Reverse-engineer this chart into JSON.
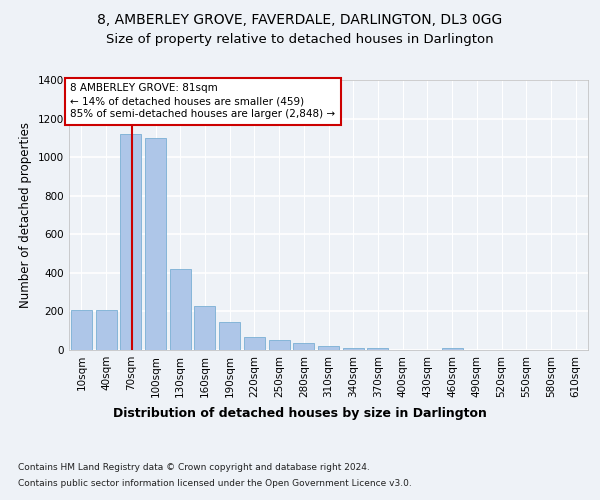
{
  "title1": "8, AMBERLEY GROVE, FAVERDALE, DARLINGTON, DL3 0GG",
  "title2": "Size of property relative to detached houses in Darlington",
  "xlabel": "Distribution of detached houses by size in Darlington",
  "ylabel": "Number of detached properties",
  "categories": [
    "10sqm",
    "40sqm",
    "70sqm",
    "100sqm",
    "130sqm",
    "160sqm",
    "190sqm",
    "220sqm",
    "250sqm",
    "280sqm",
    "310sqm",
    "340sqm",
    "370sqm",
    "400sqm",
    "430sqm",
    "460sqm",
    "490sqm",
    "520sqm",
    "550sqm",
    "580sqm",
    "610sqm"
  ],
  "values": [
    210,
    210,
    1120,
    1100,
    420,
    230,
    145,
    65,
    50,
    35,
    20,
    10,
    10,
    0,
    0,
    10,
    0,
    0,
    0,
    0,
    0
  ],
  "bar_color": "#aec6e8",
  "bar_edge_color": "#7aafd4",
  "vline_color": "#cc0000",
  "annotation_text": "8 AMBERLEY GROVE: 81sqm\n← 14% of detached houses are smaller (459)\n85% of semi-detached houses are larger (2,848) →",
  "annotation_box_color": "#ffffff",
  "annotation_box_edge": "#cc0000",
  "ylim": [
    0,
    1400
  ],
  "footnote1": "Contains HM Land Registry data © Crown copyright and database right 2024.",
  "footnote2": "Contains public sector information licensed under the Open Government Licence v3.0.",
  "background_color": "#eef2f7",
  "grid_color": "#ffffff",
  "title_fontsize": 10,
  "subtitle_fontsize": 9.5,
  "ylabel_fontsize": 8.5,
  "xlabel_fontsize": 9,
  "tick_fontsize": 7.5,
  "annotation_fontsize": 7.5,
  "footnote_fontsize": 6.5
}
